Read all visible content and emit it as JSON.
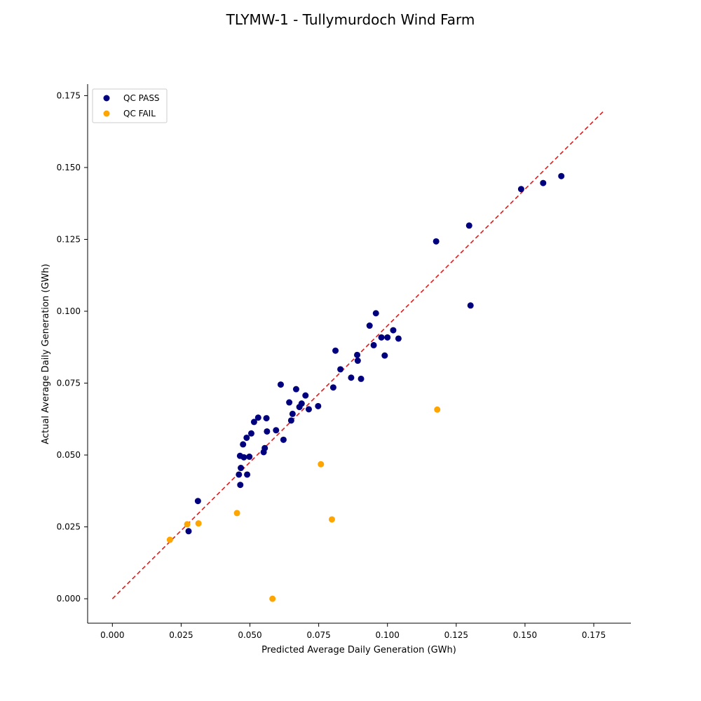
{
  "chart_data": {
    "type": "scatter",
    "title": "TLYMW-1 - Tullymurdoch Wind Farm",
    "xlabel": "Predicted Average Daily Generation (GWh)",
    "ylabel": "Actual Average Daily Generation (GWh)",
    "xlim": [
      -0.009,
      0.1885
    ],
    "ylim": [
      -0.0085,
      0.179
    ],
    "xticks": [
      0.0,
      0.025,
      0.05,
      0.075,
      0.1,
      0.125,
      0.15,
      0.175
    ],
    "yticks": [
      0.0,
      0.025,
      0.05,
      0.075,
      0.1,
      0.125,
      0.15,
      0.175
    ],
    "xtick_labels": [
      "0.000",
      "0.025",
      "0.050",
      "0.075",
      "0.100",
      "0.125",
      "0.150",
      "0.175"
    ],
    "ytick_labels": [
      "0.000",
      "0.025",
      "0.050",
      "0.075",
      "0.100",
      "0.125",
      "0.150",
      "0.175"
    ],
    "grid": false,
    "legend_position": "top-left",
    "reference_line": {
      "style": "dashed",
      "color": "#e31a1c",
      "x": [
        0.0,
        0.179
      ],
      "y": [
        0.0,
        0.17
      ]
    },
    "series": [
      {
        "name": "QC PASS",
        "color": "#00007f",
        "points": [
          [
            0.0277,
            0.0235
          ],
          [
            0.0311,
            0.034
          ],
          [
            0.046,
            0.0432
          ],
          [
            0.0464,
            0.0497
          ],
          [
            0.0465,
            0.0396
          ],
          [
            0.0467,
            0.0455
          ],
          [
            0.0475,
            0.0537
          ],
          [
            0.0478,
            0.0492
          ],
          [
            0.0488,
            0.056
          ],
          [
            0.049,
            0.0432
          ],
          [
            0.0498,
            0.0494
          ],
          [
            0.0505,
            0.0575
          ],
          [
            0.0515,
            0.0615
          ],
          [
            0.053,
            0.063
          ],
          [
            0.055,
            0.051
          ],
          [
            0.0554,
            0.0524
          ],
          [
            0.056,
            0.0628
          ],
          [
            0.0562,
            0.0582
          ],
          [
            0.0595,
            0.0586
          ],
          [
            0.0612,
            0.0745
          ],
          [
            0.0622,
            0.0553
          ],
          [
            0.0643,
            0.0683
          ],
          [
            0.065,
            0.062
          ],
          [
            0.0655,
            0.0643
          ],
          [
            0.0668,
            0.0729
          ],
          [
            0.068,
            0.0667
          ],
          [
            0.0688,
            0.0679
          ],
          [
            0.0702,
            0.0707
          ],
          [
            0.0714,
            0.0659
          ],
          [
            0.0748,
            0.067
          ],
          [
            0.0803,
            0.0735
          ],
          [
            0.0811,
            0.0863
          ],
          [
            0.0829,
            0.0798
          ],
          [
            0.0868,
            0.0769
          ],
          [
            0.089,
            0.0848
          ],
          [
            0.0892,
            0.0828
          ],
          [
            0.0904,
            0.0765
          ],
          [
            0.0935,
            0.095
          ],
          [
            0.095,
            0.0882
          ],
          [
            0.0958,
            0.0993
          ],
          [
            0.0978,
            0.0909
          ],
          [
            0.099,
            0.0846
          ],
          [
            0.1,
            0.0909
          ],
          [
            0.1021,
            0.0934
          ],
          [
            0.104,
            0.0905
          ],
          [
            0.1177,
            0.1243
          ],
          [
            0.1297,
            0.1298
          ],
          [
            0.1302,
            0.102
          ],
          [
            0.1486,
            0.1425
          ],
          [
            0.1566,
            0.1446
          ],
          [
            0.1632,
            0.147
          ]
        ]
      },
      {
        "name": "QC FAIL",
        "color": "#ffa500",
        "points": [
          [
            0.0209,
            0.0205
          ],
          [
            0.0272,
            0.0259
          ],
          [
            0.0313,
            0.0262
          ],
          [
            0.0453,
            0.0298
          ],
          [
            0.0582,
            0.0
          ],
          [
            0.0758,
            0.0468
          ],
          [
            0.0798,
            0.0276
          ],
          [
            0.1181,
            0.0658
          ]
        ]
      }
    ]
  }
}
